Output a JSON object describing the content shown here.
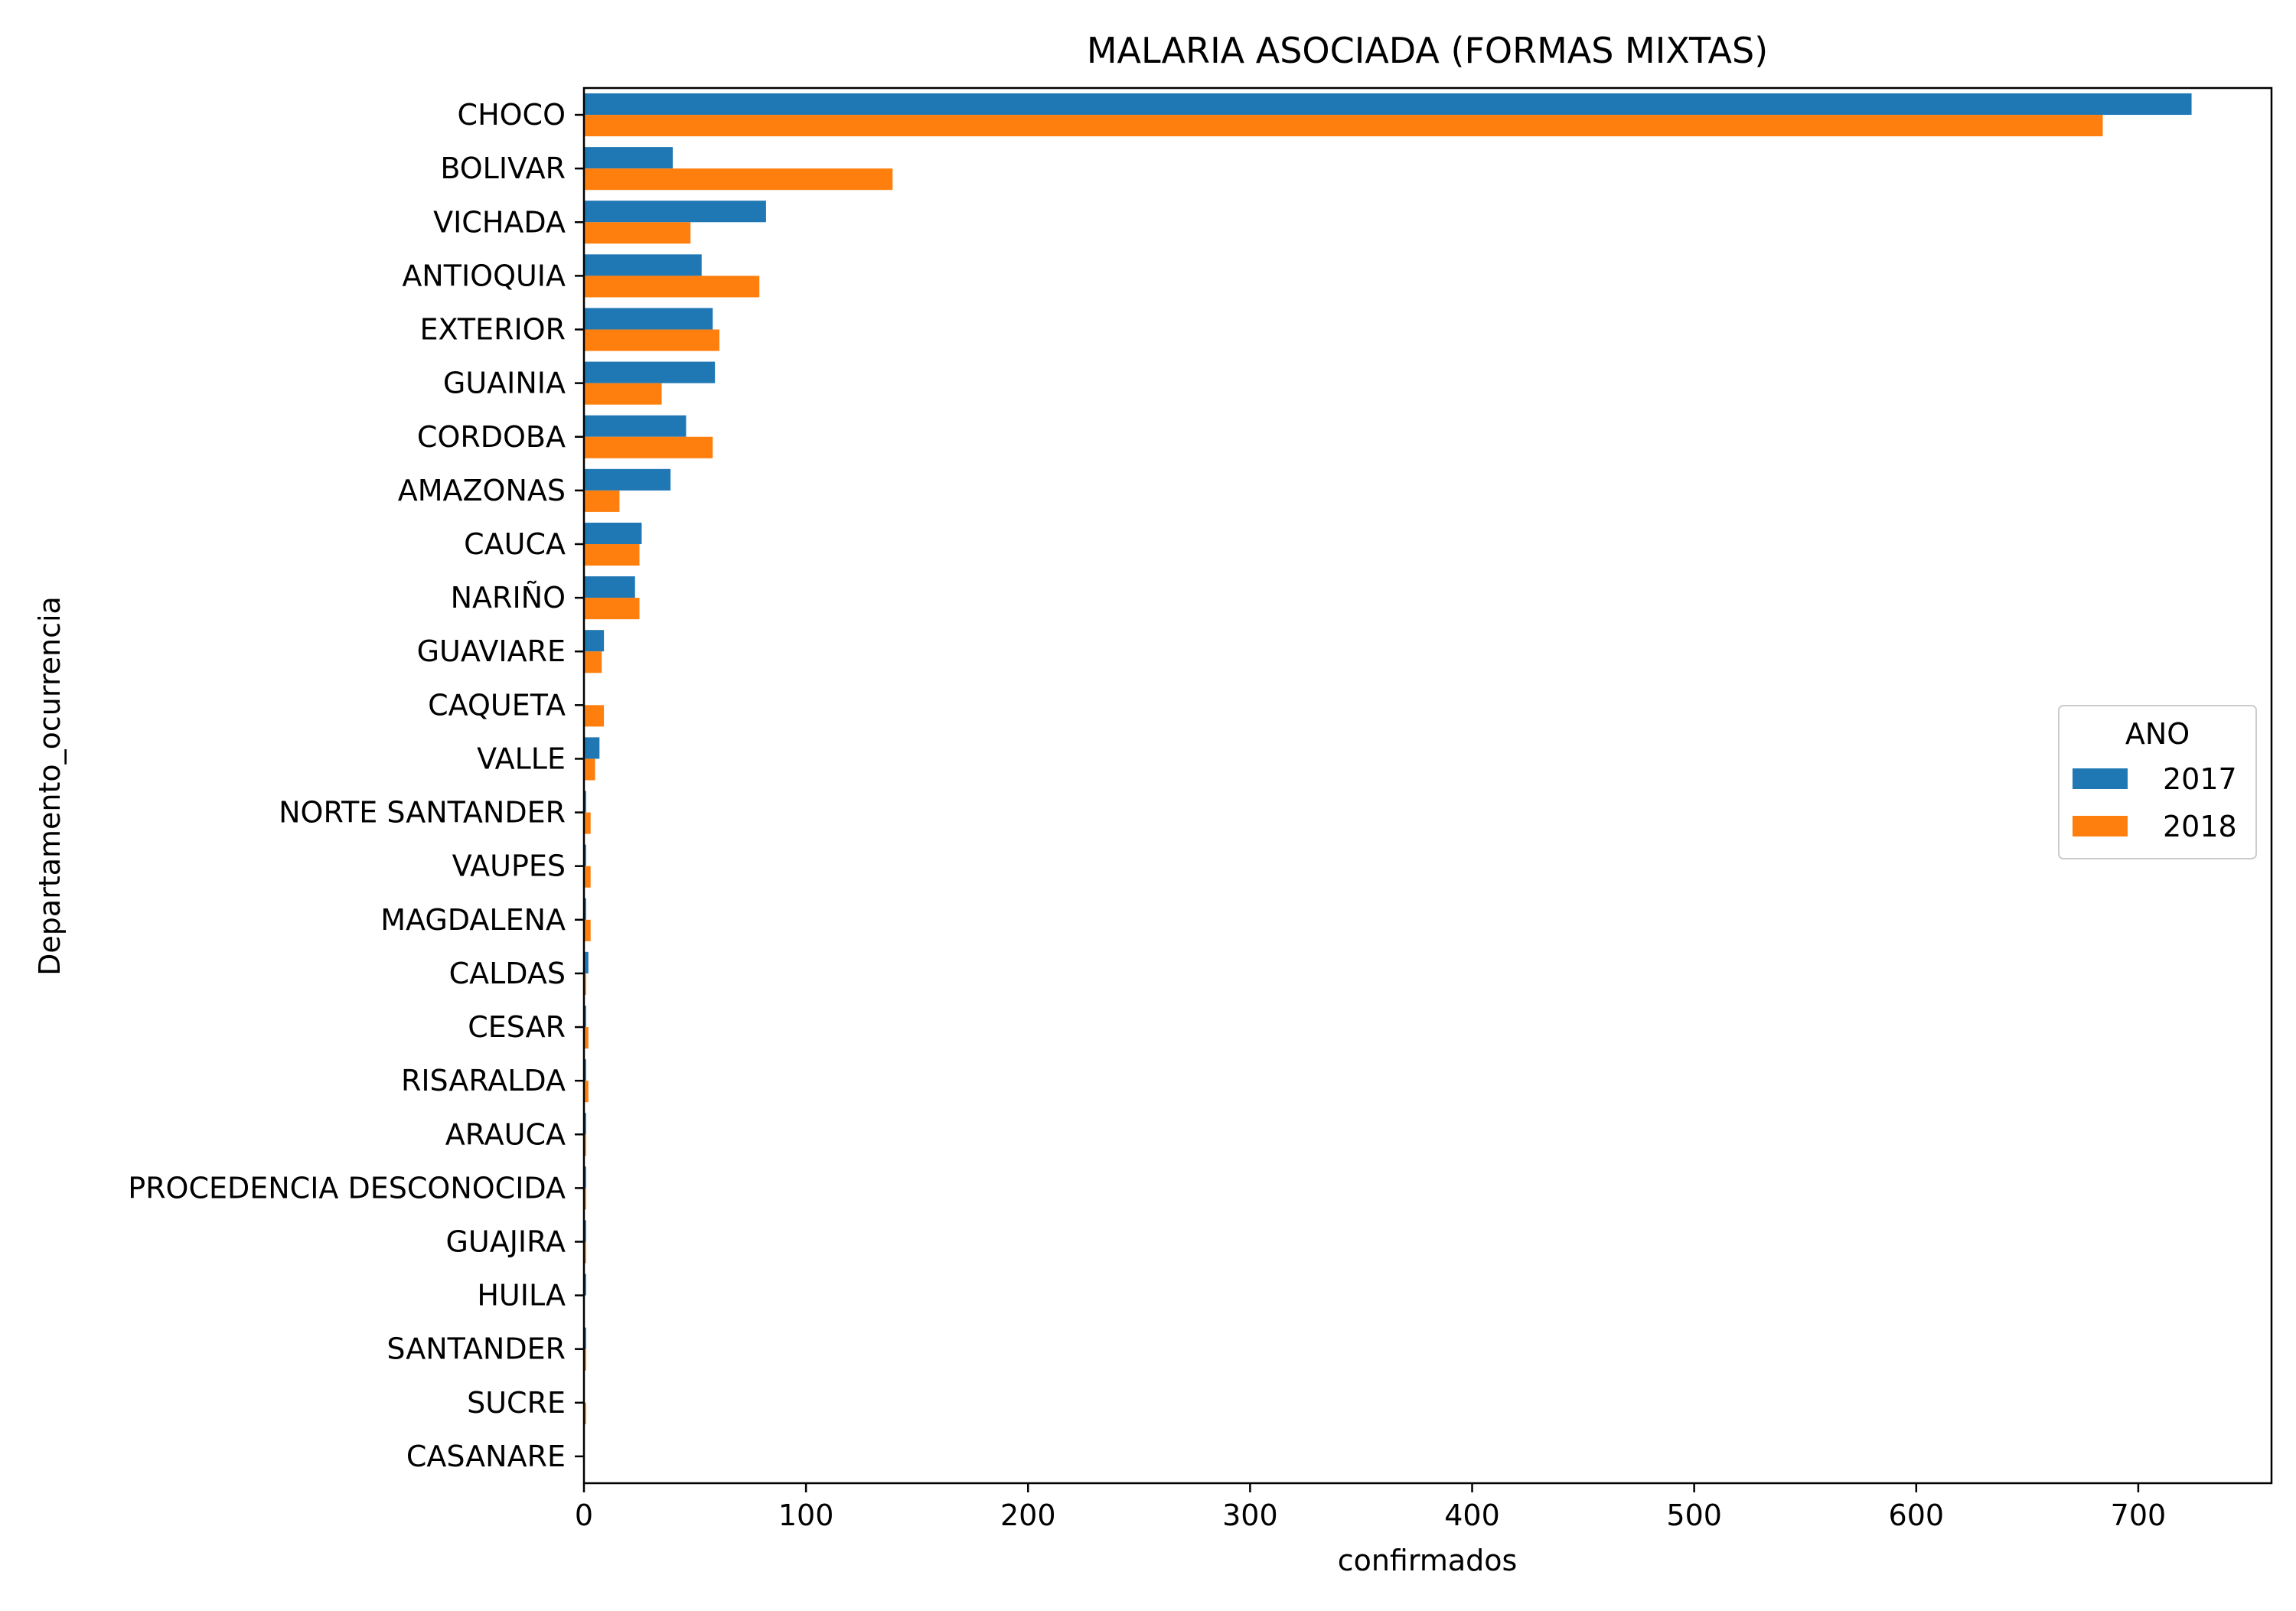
{
  "chart_data": {
    "type": "bar",
    "orientation": "horizontal",
    "title": "MALARIA ASOCIADA (FORMAS MIXTAS)",
    "xlabel": "confirmados",
    "ylabel": "Departamento_ocurrencia",
    "xlim": [
      0,
      760
    ],
    "xticks": [
      0,
      100,
      200,
      300,
      400,
      500,
      600,
      700
    ],
    "grid": false,
    "legend": {
      "title": "ANO",
      "position": "center-right"
    },
    "categories": [
      "CHOCO",
      "BOLIVAR",
      "VICHADA",
      "ANTIOQUIA",
      "EXTERIOR",
      "GUAINIA",
      "CORDOBA",
      "AMAZONAS",
      "CAUCA",
      "NARIÑO",
      "GUAVIARE",
      "CAQUETA",
      "VALLE",
      "NORTE SANTANDER",
      "VAUPES",
      "MAGDALENA",
      "CALDAS",
      "CESAR",
      "RISARALDA",
      "ARAUCA",
      "PROCEDENCIA DESCONOCIDA",
      "GUAJIRA",
      "HUILA",
      "SANTANDER",
      "SUCRE",
      "CASANARE"
    ],
    "series": [
      {
        "name": "2017",
        "color": "#1f77b4",
        "values": [
          724,
          40,
          82,
          53,
          58,
          59,
          46,
          39,
          26,
          23,
          9,
          0,
          7,
          1,
          1,
          1,
          2,
          1,
          1,
          1,
          1,
          1,
          1,
          1,
          0,
          0
        ]
      },
      {
        "name": "2018",
        "color": "#ff7f0e",
        "values": [
          684,
          139,
          48,
          79,
          61,
          35,
          58,
          16,
          25,
          25,
          8,
          9,
          5,
          3,
          3,
          3,
          1,
          2,
          2,
          1,
          1,
          1,
          0,
          1,
          1,
          0
        ]
      }
    ]
  }
}
